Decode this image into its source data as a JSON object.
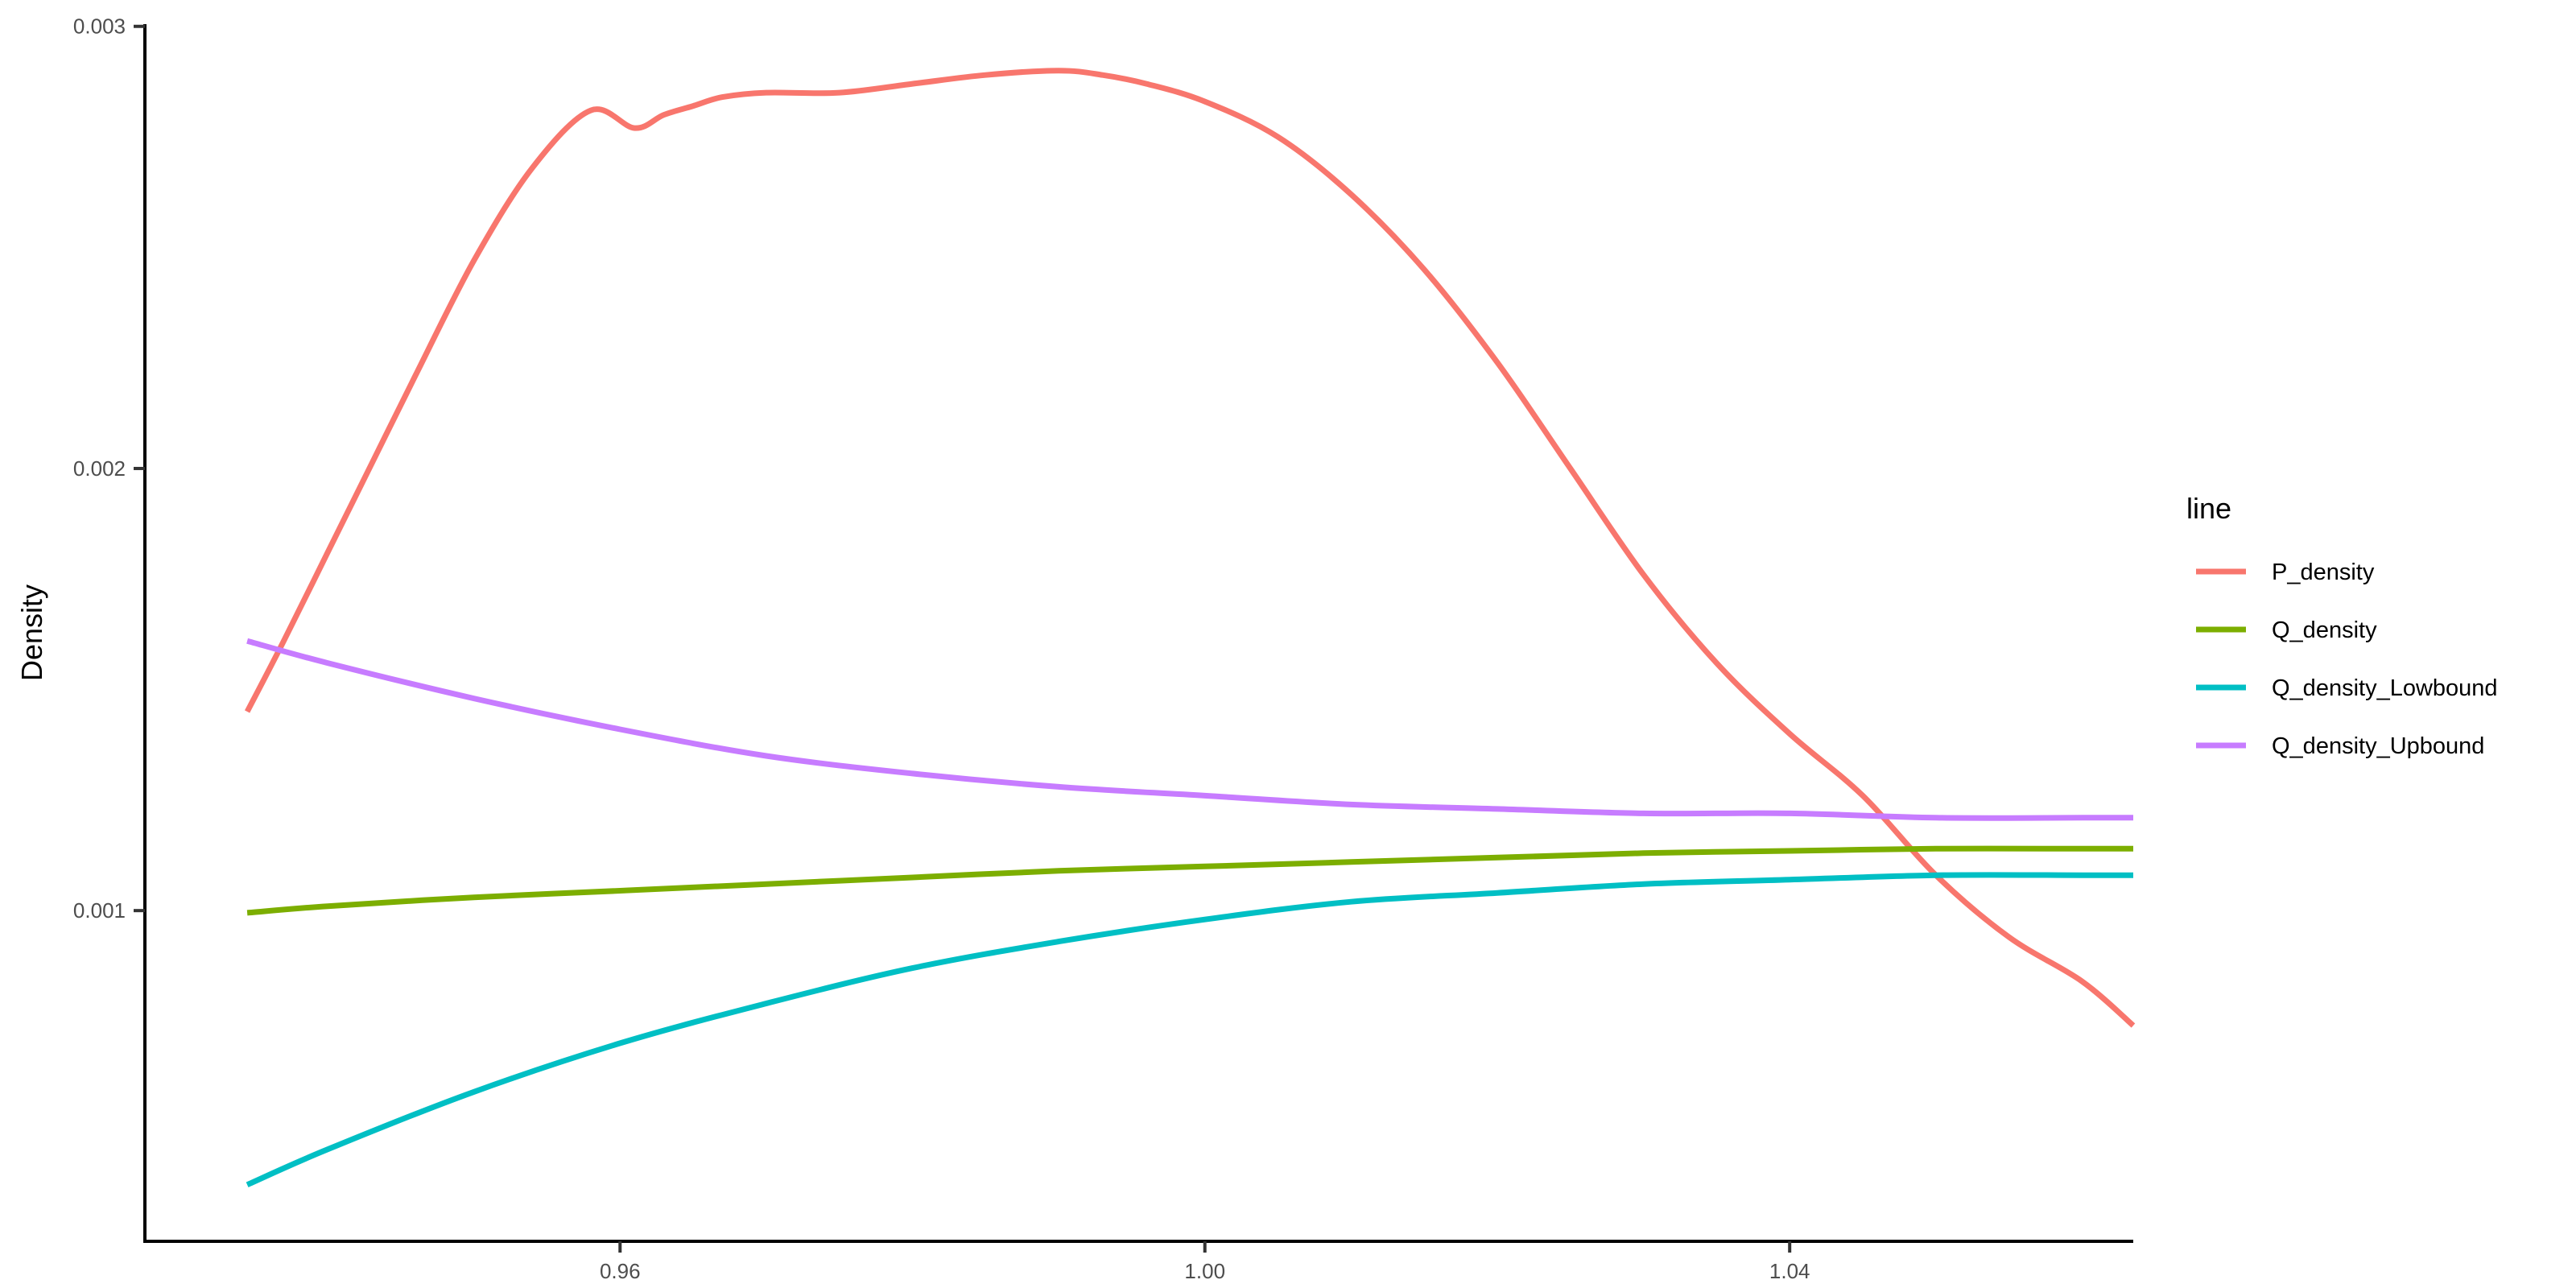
{
  "chart_data": {
    "type": "line",
    "ylabel": "Density",
    "xlim": [
      0.9275,
      1.0635
    ],
    "ylim": [
      0.000252,
      0.003005
    ],
    "x_ticks": [
      {
        "value": 0.96,
        "label": "0.96"
      },
      {
        "value": 1.0,
        "label": "1.00"
      },
      {
        "value": 1.04,
        "label": "1.04"
      }
    ],
    "y_ticks": [
      {
        "value": 0.001,
        "label": "0.001"
      },
      {
        "value": 0.002,
        "label": "0.002"
      },
      {
        "value": 0.003,
        "label": "0.003"
      }
    ],
    "grid": false,
    "legend": {
      "title": "line",
      "position": "right",
      "items": [
        {
          "label": "P_density",
          "color": "#F8766D"
        },
        {
          "label": "Q_density",
          "color": "#7CAE00"
        },
        {
          "label": "Q_density_Lowbound",
          "color": "#00BFC4"
        },
        {
          "label": "Q_density_Upbound",
          "color": "#C77CFF"
        }
      ]
    },
    "series": [
      {
        "name": "P_density",
        "color": "#F8766D",
        "x": [
          0.9345,
          0.937,
          0.94,
          0.943,
          0.946,
          0.95,
          0.954,
          0.958,
          0.961,
          0.963,
          0.965,
          0.967,
          0.97,
          0.975,
          0.98,
          0.985,
          0.99,
          0.993,
          0.996,
          1.0,
          1.005,
          1.01,
          1.015,
          1.02,
          1.025,
          1.03,
          1.035,
          1.04,
          1.045,
          1.05,
          1.055,
          1.06,
          1.0635
        ],
        "y": [
          0.00145,
          0.00161,
          0.00181,
          0.00201,
          0.00221,
          0.00247,
          0.00268,
          0.00281,
          0.00277,
          0.0028,
          0.00282,
          0.00284,
          0.00285,
          0.00285,
          0.00287,
          0.00289,
          0.0029,
          0.00289,
          0.00287,
          0.00283,
          0.00275,
          0.00262,
          0.00245,
          0.00224,
          0.002,
          0.00176,
          0.00156,
          0.0014,
          0.00126,
          0.00108,
          0.00094,
          0.00084,
          0.00074
        ]
      },
      {
        "name": "Q_density",
        "color": "#7CAE00",
        "x": [
          0.9345,
          0.94,
          0.95,
          0.96,
          0.97,
          0.98,
          0.99,
          1.0,
          1.01,
          1.02,
          1.03,
          1.04,
          1.05,
          1.06,
          1.0635
        ],
        "y": [
          0.000995,
          0.00101,
          0.00103,
          0.001045,
          0.00106,
          0.001075,
          0.00109,
          0.0011,
          0.00111,
          0.00112,
          0.00113,
          0.001135,
          0.00114,
          0.00114,
          0.00114
        ]
      },
      {
        "name": "Q_density_Lowbound",
        "color": "#00BFC4",
        "x": [
          0.9345,
          0.94,
          0.95,
          0.96,
          0.97,
          0.98,
          0.99,
          1.0,
          1.01,
          1.02,
          1.03,
          1.04,
          1.05,
          1.06,
          1.0635
        ],
        "y": [
          0.00038,
          0.00046,
          0.00059,
          0.0007,
          0.00079,
          0.00087,
          0.00093,
          0.00098,
          0.00102,
          0.00104,
          0.00106,
          0.00107,
          0.00108,
          0.00108,
          0.00108
        ]
      },
      {
        "name": "Q_density_Upbound",
        "color": "#C77CFF",
        "x": [
          0.9345,
          0.94,
          0.95,
          0.96,
          0.97,
          0.98,
          0.99,
          1.0,
          1.01,
          1.02,
          1.03,
          1.04,
          1.05,
          1.06,
          1.0635
        ],
        "y": [
          0.00161,
          0.00156,
          0.00148,
          0.00141,
          0.00135,
          0.00131,
          0.00128,
          0.00126,
          0.00124,
          0.00123,
          0.00122,
          0.00122,
          0.00121,
          0.00121,
          0.00121
        ]
      }
    ]
  }
}
